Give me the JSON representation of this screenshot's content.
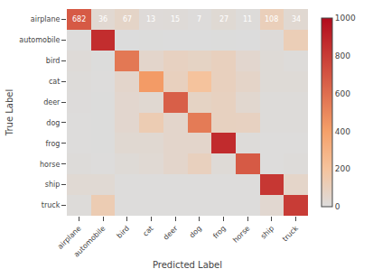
{
  "chart_data": {
    "type": "heatmap",
    "categories": [
      "airplane",
      "automobile",
      "bird",
      "cat",
      "deer",
      "dog",
      "frog",
      "horse",
      "ship",
      "truck"
    ],
    "values": [
      [
        682,
        36,
        67,
        13,
        15,
        7,
        27,
        11,
        108,
        34
      ],
      [
        4,
        860,
        1,
        2,
        1,
        1,
        2,
        1,
        12,
        116
      ],
      [
        15,
        2,
        560,
        55,
        85,
        75,
        95,
        45,
        18,
        8
      ],
      [
        8,
        4,
        55,
        420,
        95,
        200,
        95,
        65,
        18,
        18
      ],
      [
        5,
        2,
        45,
        35,
        660,
        75,
        90,
        40,
        10,
        8
      ],
      [
        4,
        3,
        45,
        130,
        55,
        550,
        90,
        85,
        8,
        8
      ],
      [
        4,
        2,
        35,
        35,
        55,
        55,
        870,
        10,
        4,
        4
      ],
      [
        8,
        4,
        18,
        28,
        55,
        95,
        18,
        680,
        4,
        8
      ],
      [
        28,
        28,
        4,
        4,
        4,
        4,
        4,
        4,
        820,
        60
      ],
      [
        8,
        130,
        4,
        4,
        4,
        4,
        4,
        4,
        38,
        800
      ]
    ],
    "xlabel": "Predicted Label",
    "ylabel": "True Label",
    "color": "magma",
    "zlim": [
      0,
      1000
    ],
    "zticks": [
      0,
      200,
      400,
      600,
      800,
      1000
    ],
    "annotations": [
      {
        "x": "airplane",
        "y": "airplane",
        "text": "682"
      },
      {
        "x": "automobile",
        "y": "airplane",
        "text": "36"
      },
      {
        "x": "bird",
        "y": "airplane",
        "text": "67"
      },
      {
        "x": "cat",
        "y": "airplane",
        "text": "13"
      },
      {
        "x": "deer",
        "y": "airplane",
        "text": "15"
      },
      {
        "x": "dog",
        "y": "airplane",
        "text": "7"
      },
      {
        "x": "frog",
        "y": "airplane",
        "text": "27"
      },
      {
        "x": "horse",
        "y": "airplane",
        "text": "11"
      },
      {
        "x": "ship",
        "y": "airplane",
        "text": "108"
      },
      {
        "x": "truck",
        "y": "airplane",
        "text": "34"
      }
    ]
  }
}
